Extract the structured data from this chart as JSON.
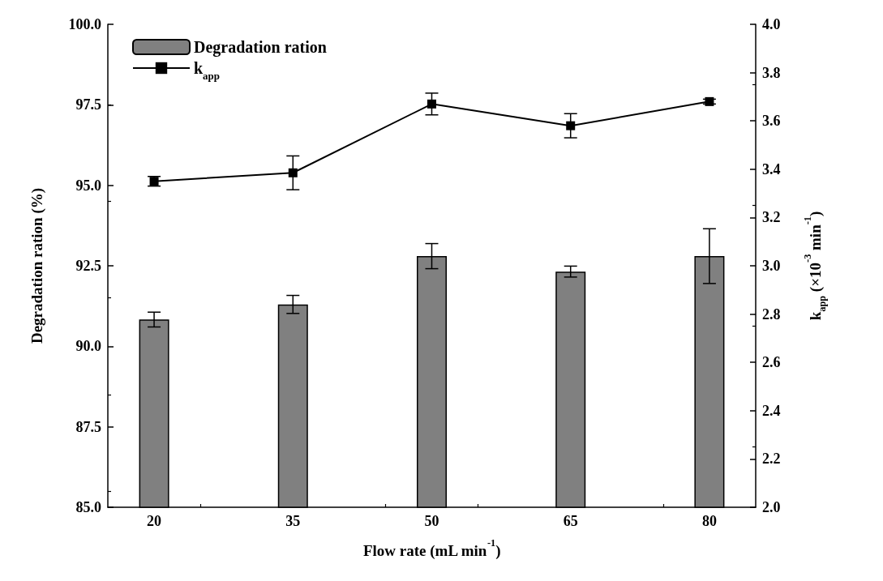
{
  "chart_data": {
    "type": "bar",
    "xlabel": "Flow rate (mL min$^{-1}$)",
    "ylabel": "Degradation ration (%)",
    "y2label": "k$_{app}$ (×10$^{-3}$ min$^{-1}$)",
    "x": [
      20,
      35,
      50,
      65,
      80
    ],
    "xlim": [
      15,
      85
    ],
    "xticks": [
      20,
      35,
      50,
      65,
      80
    ],
    "ylim": [
      85,
      100
    ],
    "yticks": [
      {
        "value": 85,
        "label": "85.0"
      },
      {
        "value": 87.5,
        "label": "87.5"
      },
      {
        "value": 90,
        "label": "90.0"
      },
      {
        "value": 92.5,
        "label": "92.5"
      },
      {
        "value": 95,
        "label": "95.0"
      },
      {
        "value": 97.5,
        "label": "97.5"
      },
      {
        "value": 100,
        "label": "100.0"
      }
    ],
    "y2lim": [
      2,
      4
    ],
    "y2ticks": [
      {
        "value": 2,
        "label": "2.0"
      },
      {
        "value": 2.2,
        "label": "2.2"
      },
      {
        "value": 2.4,
        "label": "2.4"
      },
      {
        "value": 2.6,
        "label": "2.6"
      },
      {
        "value": 2.8,
        "label": "2.8"
      },
      {
        "value": 3,
        "label": "3.0"
      },
      {
        "value": 3.2,
        "label": "3.2"
      },
      {
        "value": 3.4,
        "label": "3.4"
      },
      {
        "value": 3.6,
        "label": "3.6"
      },
      {
        "value": 3.8,
        "label": "3.8"
      },
      {
        "value": 4,
        "label": "4.0"
      }
    ],
    "series": [
      {
        "name": "Degradation ration",
        "color": "#808080",
        "values": [
          90.83,
          91.3,
          92.8,
          92.32,
          92.8
        ],
        "errors": [
          0.23,
          0.28,
          0.39,
          0.17,
          0.85
        ]
      },
      {
        "name": "k$_{app}$",
        "type": "line",
        "axis": "y2",
        "color": "#000000",
        "marker": "square",
        "values": [
          3.35,
          3.385,
          3.67,
          3.58,
          3.68
        ],
        "errors": [
          0.02,
          0.07,
          0.045,
          0.05,
          0.01
        ]
      }
    ],
    "grid": false,
    "legend": "top left"
  }
}
